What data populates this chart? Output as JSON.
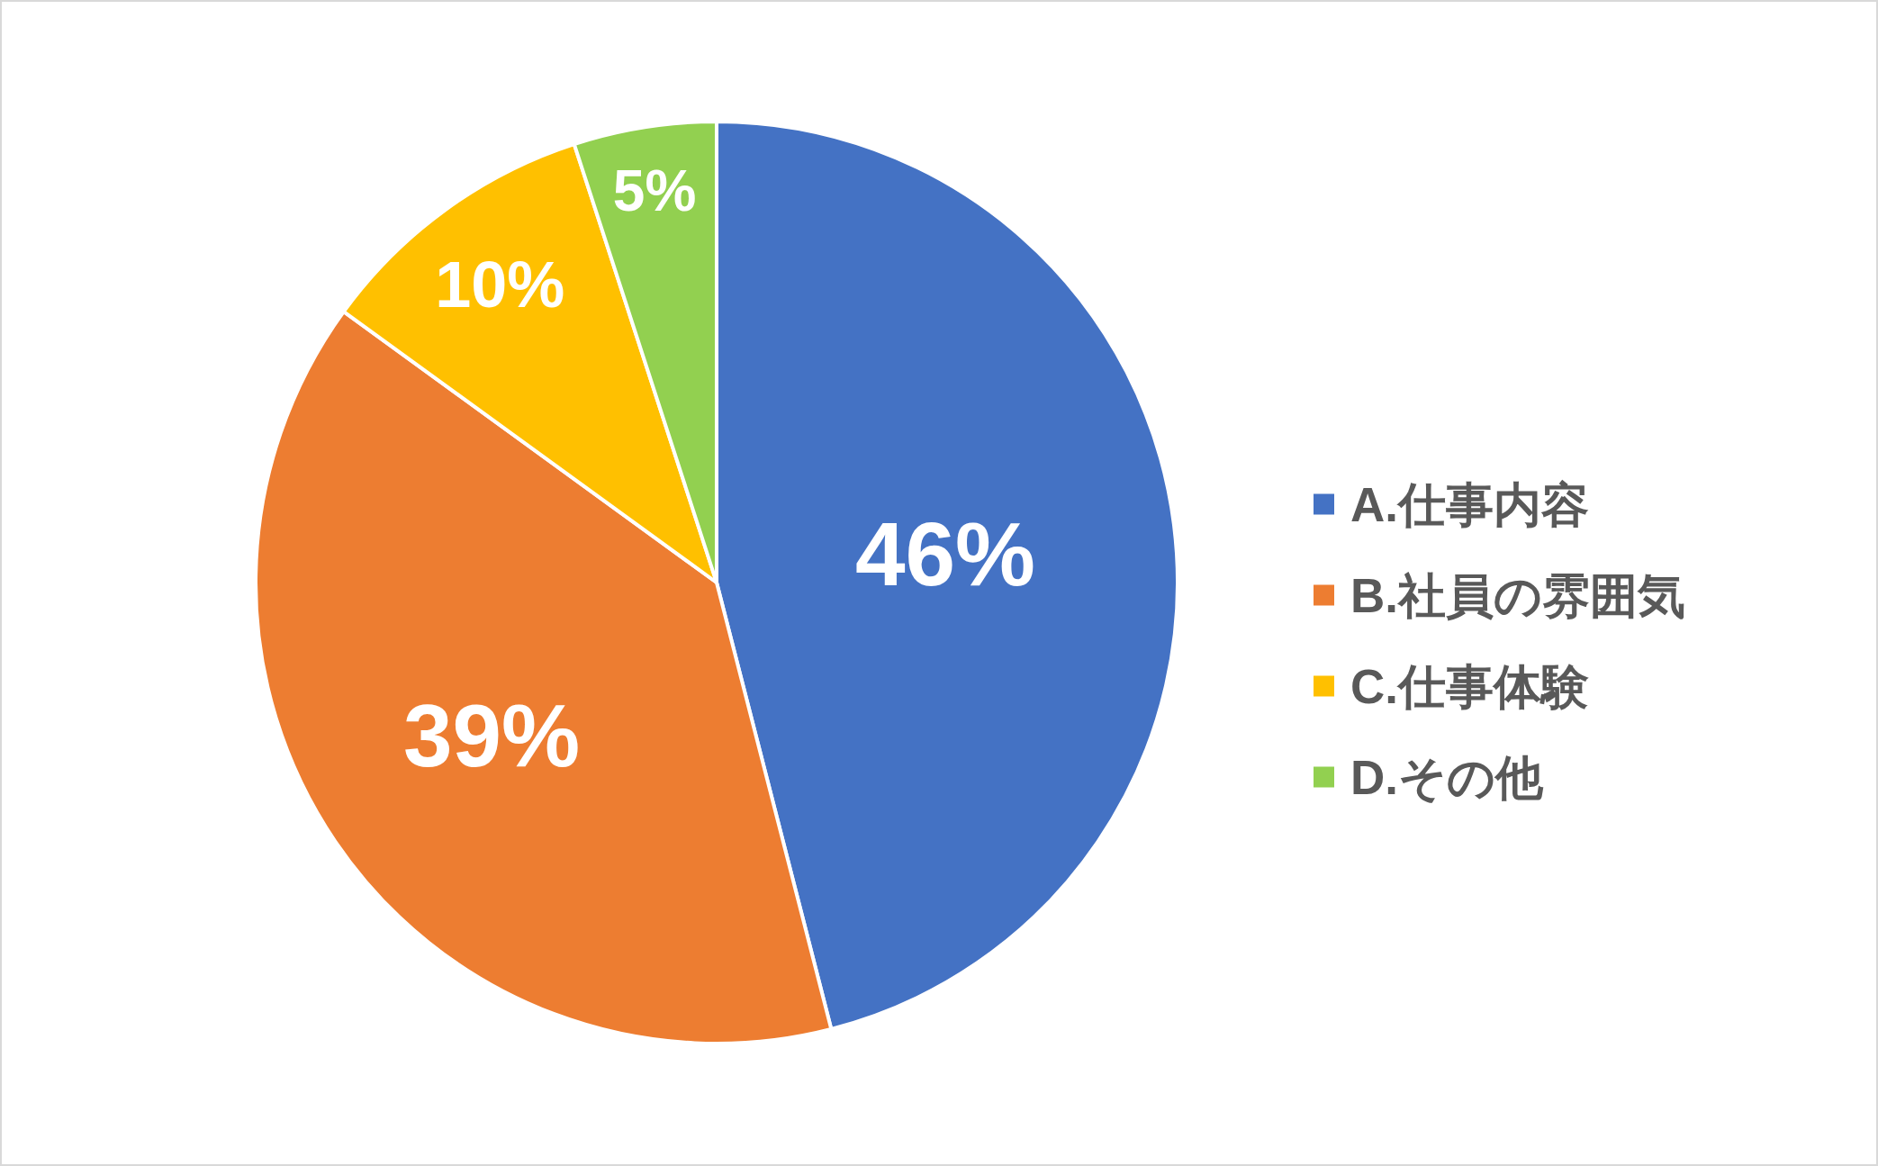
{
  "chart_data": {
    "type": "pie",
    "categories": [
      "A.仕事内容",
      "B.社員の雰囲気",
      "C.仕事体験",
      "D.その他"
    ],
    "values": [
      46,
      39,
      10,
      5
    ],
    "colors": [
      "#4472c4",
      "#ed7d31",
      "#ffc000",
      "#92d050"
    ],
    "value_labels": [
      "46%",
      "39%",
      "10%",
      "5%"
    ],
    "legend": "right"
  }
}
